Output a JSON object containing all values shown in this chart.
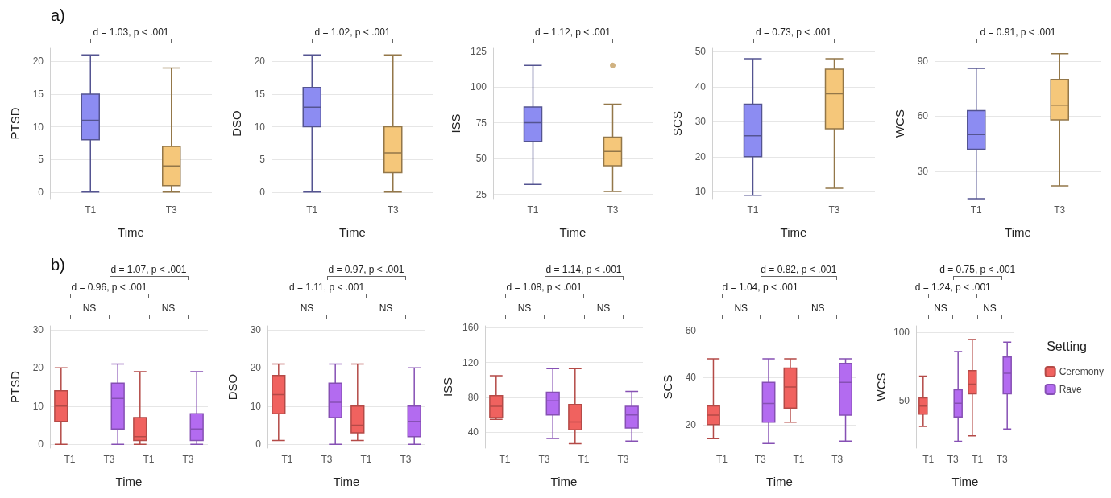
{
  "chart_data": [
    {
      "type": "box",
      "title": "a)",
      "xlabel": "Time",
      "ylabel": "PTSD",
      "categories": [
        "T1",
        "T3"
      ],
      "colors": [
        "#8c8cf2",
        "#f5c77a"
      ],
      "ylim": [
        -1,
        22
      ],
      "yticks": [
        0,
        5,
        10,
        15,
        20
      ],
      "grid": true,
      "boxes": [
        {
          "low": 0,
          "q1": 8,
          "median": 11,
          "q3": 15,
          "high": 21
        },
        {
          "low": 0,
          "q1": 1,
          "median": 4,
          "q3": 7,
          "high": 19
        }
      ],
      "annotations": [
        "d = 1.03, p < .001"
      ]
    },
    {
      "type": "box",
      "xlabel": "Time",
      "ylabel": "DSO",
      "categories": [
        "T1",
        "T3"
      ],
      "colors": [
        "#8c8cf2",
        "#f5c77a"
      ],
      "ylim": [
        -1,
        22
      ],
      "yticks": [
        0,
        5,
        10,
        15,
        20
      ],
      "grid": true,
      "boxes": [
        {
          "low": 0,
          "q1": 10,
          "median": 13,
          "q3": 16,
          "high": 21
        },
        {
          "low": 0,
          "q1": 3,
          "median": 6,
          "q3": 10,
          "high": 21
        }
      ],
      "annotations": [
        "d = 1.02, p < .001"
      ]
    },
    {
      "type": "box",
      "xlabel": "Time",
      "ylabel": "ISS",
      "categories": [
        "T1",
        "T3"
      ],
      "colors": [
        "#8c8cf2",
        "#f5c77a"
      ],
      "ylim": [
        22,
        127
      ],
      "yticks": [
        25,
        50,
        75,
        100,
        125
      ],
      "grid": true,
      "boxes": [
        {
          "low": 32,
          "q1": 62,
          "median": 75,
          "q3": 86,
          "high": 115
        },
        {
          "low": 27,
          "q1": 45,
          "median": 55,
          "q3": 65,
          "high": 88,
          "outliers": [
            115
          ]
        }
      ],
      "annotations": [
        "d = 1.12, p < .001"
      ]
    },
    {
      "type": "box",
      "xlabel": "Time",
      "ylabel": "SCS",
      "categories": [
        "T1",
        "T3"
      ],
      "colors": [
        "#8c8cf2",
        "#f5c77a"
      ],
      "ylim": [
        8,
        51
      ],
      "yticks": [
        10,
        20,
        30,
        40,
        50
      ],
      "grid": true,
      "boxes": [
        {
          "low": 9,
          "q1": 20,
          "median": 26,
          "q3": 35,
          "high": 48
        },
        {
          "low": 11,
          "q1": 28,
          "median": 38,
          "q3": 45,
          "high": 48
        }
      ],
      "annotations": [
        "d = 0.73, p < .001"
      ]
    },
    {
      "type": "box",
      "xlabel": "Time",
      "ylabel": "WCS",
      "categories": [
        "T1",
        "T3"
      ],
      "colors": [
        "#8c8cf2",
        "#f5c77a"
      ],
      "ylim": [
        15,
        97
      ],
      "yticks": [
        30,
        60,
        90
      ],
      "grid": true,
      "boxes": [
        {
          "low": 15,
          "q1": 42,
          "median": 50,
          "q3": 63,
          "high": 86
        },
        {
          "low": 22,
          "q1": 58,
          "median": 66,
          "q3": 80,
          "high": 94
        }
      ],
      "annotations": [
        "d = 0.91, p < .001"
      ]
    },
    {
      "type": "box",
      "title": "b)",
      "xlabel": "Time",
      "ylabel": "PTSD",
      "categories": [
        "T1",
        "T3",
        "T1",
        "T3"
      ],
      "ylim": [
        -1,
        31
      ],
      "yticks": [
        0,
        10,
        20,
        30
      ],
      "grid": true,
      "series": [
        {
          "color": "#f0625f",
          "boxes": [
            {
              "low": 0,
              "q1": 6,
              "median": 10,
              "q3": 14,
              "high": 20
            },
            null,
            {
              "low": 0,
              "q1": 1,
              "median": 2,
              "q3": 7,
              "high": 19
            },
            null
          ]
        },
        {
          "color": "#b36bf0",
          "boxes": [
            null,
            {
              "low": 0,
              "q1": 4,
              "median": 12,
              "q3": 16,
              "high": 21
            },
            null,
            {
              "low": 0,
              "q1": 1,
              "median": 4,
              "q3": 8,
              "high": 19
            }
          ]
        }
      ],
      "annotations": [
        "d = 0.96, p < .001",
        "d = 1.07, p < .001",
        "NS",
        "NS"
      ]
    },
    {
      "type": "box",
      "xlabel": "Time",
      "ylabel": "DSO",
      "categories": [
        "T1",
        "T3",
        "T1",
        "T3"
      ],
      "ylim": [
        -1,
        31
      ],
      "yticks": [
        0,
        10,
        20,
        30
      ],
      "grid": true,
      "series": [
        {
          "color": "#f0625f",
          "boxes": [
            {
              "low": 1,
              "q1": 8,
              "median": 13,
              "q3": 18,
              "high": 21
            },
            null,
            {
              "low": 1,
              "q1": 3,
              "median": 5,
              "q3": 10,
              "high": 21
            },
            null
          ]
        },
        {
          "color": "#b36bf0",
          "boxes": [
            null,
            {
              "low": 0,
              "q1": 7,
              "median": 11,
              "q3": 16,
              "high": 21
            },
            null,
            {
              "low": 0,
              "q1": 2,
              "median": 6,
              "q3": 10,
              "high": 20
            }
          ]
        }
      ],
      "annotations": [
        "d = 1.11, p < .001",
        "d = 0.97, p < .001",
        "NS",
        "NS"
      ]
    },
    {
      "type": "box",
      "xlabel": "Time",
      "ylabel": "ISS",
      "categories": [
        "T1",
        "T3",
        "T1",
        "T3"
      ],
      "ylim": [
        22,
        162
      ],
      "yticks": [
        40,
        80,
        120,
        160
      ],
      "grid": true,
      "series": [
        {
          "color": "#f0625f",
          "boxes": [
            {
              "low": 55,
              "q1": 57,
              "median": 70,
              "q3": 82,
              "high": 105
            },
            null,
            {
              "low": 27,
              "q1": 43,
              "median": 52,
              "q3": 72,
              "high": 113
            },
            null
          ]
        },
        {
          "color": "#b36bf0",
          "boxes": [
            null,
            {
              "low": 33,
              "q1": 60,
              "median": 76,
              "q3": 86,
              "high": 113
            },
            null,
            {
              "low": 30,
              "q1": 45,
              "median": 60,
              "q3": 70,
              "high": 87
            }
          ]
        }
      ],
      "annotations": [
        "d = 1.08, p < .001",
        "d = 1.14, p < .001",
        "NS",
        "NS"
      ]
    },
    {
      "type": "box",
      "xlabel": "Time",
      "ylabel": "SCS",
      "categories": [
        "T1",
        "T3",
        "T1",
        "T3"
      ],
      "ylim": [
        10,
        62
      ],
      "yticks": [
        20,
        40,
        60
      ],
      "grid": true,
      "series": [
        {
          "color": "#f0625f",
          "boxes": [
            {
              "low": 14,
              "q1": 20,
              "median": 24,
              "q3": 28,
              "high": 48
            },
            null,
            {
              "low": 21,
              "q1": 27,
              "median": 36,
              "q3": 44,
              "high": 48
            },
            null
          ]
        },
        {
          "color": "#b36bf0",
          "boxes": [
            null,
            {
              "low": 12,
              "q1": 21,
              "median": 29,
              "q3": 38,
              "high": 48
            },
            null,
            {
              "low": 13,
              "q1": 24,
              "median": 38,
              "q3": 46,
              "high": 48
            }
          ]
        }
      ],
      "annotations": [
        "d = 1.04, p < .001",
        "d = 0.82, p < .001",
        "NS",
        "NS"
      ]
    },
    {
      "type": "box",
      "xlabel": "Time",
      "ylabel": "WCS",
      "legend_title": "Setting",
      "legend": "right",
      "categories": [
        "T1",
        "T3",
        "T1",
        "T3"
      ],
      "ylim": [
        15,
        105
      ],
      "yticks": [
        50,
        100
      ],
      "grid": true,
      "series": [
        {
          "name": "Ceremony",
          "color": "#f0625f",
          "boxes": [
            {
              "low": 31,
              "q1": 40,
              "median": 46,
              "q3": 52,
              "high": 68
            },
            null,
            {
              "low": 24,
              "q1": 55,
              "median": 62,
              "q3": 72,
              "high": 95
            },
            null
          ]
        },
        {
          "name": "Rave",
          "color": "#b36bf0",
          "boxes": [
            null,
            {
              "low": 20,
              "q1": 38,
              "median": 48,
              "q3": 58,
              "high": 86
            },
            null,
            {
              "low": 29,
              "q1": 55,
              "median": 70,
              "q3": 82,
              "high": 93
            }
          ]
        }
      ],
      "annotations": [
        "d = 1.24, p < .001",
        "d = 0.75, p < .001",
        "NS",
        "NS"
      ]
    }
  ]
}
